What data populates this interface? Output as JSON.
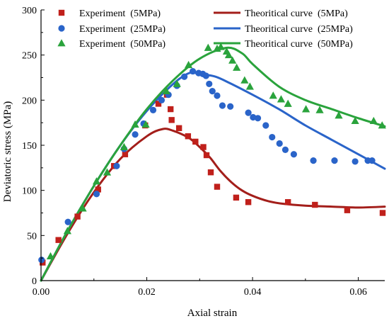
{
  "chart_data": {
    "type": "scatter",
    "xlabel": "Axial strain",
    "ylabel": "Deviatoric stress (MPa)",
    "xlim": [
      0.0,
      0.065
    ],
    "ylim": [
      0,
      300
    ],
    "x_ticks": [
      0.0,
      0.02,
      0.04,
      0.06
    ],
    "x_tick_labels": [
      "0.00",
      "0.02",
      "0.04",
      "0.06"
    ],
    "y_ticks": [
      0,
      50,
      100,
      150,
      200,
      250,
      300
    ],
    "y_tick_labels": [
      "0",
      "50",
      "100",
      "150",
      "200",
      "250",
      "300"
    ],
    "legend_position": "top",
    "experiments": [
      {
        "name": "Experiment (5MPa)",
        "marker": "square",
        "color": "#c0201b",
        "points": [
          [
            0.0003,
            20
          ],
          [
            0.0033,
            45
          ],
          [
            0.0069,
            71
          ],
          [
            0.0108,
            101
          ],
          [
            0.0138,
            127
          ],
          [
            0.0159,
            140
          ],
          [
            0.0197,
            172
          ],
          [
            0.0222,
            196
          ],
          [
            0.0238,
            206
          ],
          [
            0.0245,
            190
          ],
          [
            0.0247,
            178
          ],
          [
            0.0261,
            169
          ],
          [
            0.0278,
            160
          ],
          [
            0.0292,
            154
          ],
          [
            0.0307,
            148
          ],
          [
            0.0313,
            139
          ],
          [
            0.0321,
            120
          ],
          [
            0.0333,
            104
          ],
          [
            0.0369,
            92
          ],
          [
            0.0392,
            87
          ],
          [
            0.0467,
            87
          ],
          [
            0.0518,
            84
          ],
          [
            0.0579,
            78
          ],
          [
            0.0646,
            75
          ]
        ]
      },
      {
        "name": "Experiment (25MPa)",
        "marker": "circle",
        "color": "#2a64c9",
        "points": [
          [
            0.0001,
            23
          ],
          [
            0.0051,
            65
          ],
          [
            0.0105,
            96
          ],
          [
            0.0143,
            127
          ],
          [
            0.0157,
            146
          ],
          [
            0.0178,
            162
          ],
          [
            0.0194,
            174
          ],
          [
            0.0212,
            189
          ],
          [
            0.0228,
            200
          ],
          [
            0.0241,
            206
          ],
          [
            0.0257,
            216
          ],
          [
            0.0271,
            226
          ],
          [
            0.0287,
            232
          ],
          [
            0.0298,
            230
          ],
          [
            0.0306,
            229
          ],
          [
            0.0312,
            227
          ],
          [
            0.0318,
            218
          ],
          [
            0.0324,
            210
          ],
          [
            0.0333,
            205
          ],
          [
            0.0343,
            194
          ],
          [
            0.0358,
            193
          ],
          [
            0.0392,
            186
          ],
          [
            0.0401,
            181
          ],
          [
            0.041,
            180
          ],
          [
            0.0425,
            172
          ],
          [
            0.0437,
            159
          ],
          [
            0.0451,
            152
          ],
          [
            0.0462,
            145
          ],
          [
            0.0478,
            140
          ],
          [
            0.0515,
            133
          ],
          [
            0.0555,
            133
          ],
          [
            0.0594,
            132
          ],
          [
            0.0618,
            133
          ],
          [
            0.0626,
            133
          ]
        ]
      },
      {
        "name": "Experiment (50MPa)",
        "marker": "triangle",
        "color": "#2aa33c",
        "points": [
          [
            0.0018,
            27
          ],
          [
            0.005,
            55
          ],
          [
            0.0079,
            80
          ],
          [
            0.0105,
            110
          ],
          [
            0.0125,
            120
          ],
          [
            0.0157,
            148
          ],
          [
            0.0178,
            173
          ],
          [
            0.0198,
            173
          ],
          [
            0.0237,
            210
          ],
          [
            0.0257,
            218
          ],
          [
            0.0279,
            239
          ],
          [
            0.0316,
            258
          ],
          [
            0.0333,
            257
          ],
          [
            0.034,
            259
          ],
          [
            0.0351,
            254
          ],
          [
            0.0355,
            250
          ],
          [
            0.0362,
            244
          ],
          [
            0.037,
            236
          ],
          [
            0.0385,
            222
          ],
          [
            0.0395,
            215
          ],
          [
            0.0439,
            205
          ],
          [
            0.0454,
            201
          ],
          [
            0.0467,
            196
          ],
          [
            0.0501,
            190
          ],
          [
            0.0527,
            189
          ],
          [
            0.0563,
            183
          ],
          [
            0.0594,
            177
          ],
          [
            0.0629,
            177
          ],
          [
            0.0645,
            172
          ]
        ]
      }
    ],
    "curves": [
      {
        "name": "Theoritical curve (5MPa)",
        "color": "#a31e1a",
        "points": [
          [
            0.0,
            0
          ],
          [
            0.005,
            52
          ],
          [
            0.01,
            98
          ],
          [
            0.015,
            135
          ],
          [
            0.02,
            160
          ],
          [
            0.023,
            168
          ],
          [
            0.025,
            166
          ],
          [
            0.028,
            158
          ],
          [
            0.03,
            148
          ],
          [
            0.032,
            136
          ],
          [
            0.034,
            121
          ],
          [
            0.036,
            109
          ],
          [
            0.038,
            100
          ],
          [
            0.04,
            94
          ],
          [
            0.043,
            88
          ],
          [
            0.046,
            85
          ],
          [
            0.05,
            83
          ],
          [
            0.055,
            82
          ],
          [
            0.06,
            81
          ],
          [
            0.065,
            82
          ]
        ]
      },
      {
        "name": "Theoritical curve (25MPa)",
        "color": "#2a64c9",
        "points": [
          [
            0.0,
            0
          ],
          [
            0.005,
            55
          ],
          [
            0.01,
            105
          ],
          [
            0.015,
            150
          ],
          [
            0.02,
            188
          ],
          [
            0.025,
            218
          ],
          [
            0.028,
            230
          ],
          [
            0.03,
            229
          ],
          [
            0.033,
            226
          ],
          [
            0.036,
            218
          ],
          [
            0.04,
            206
          ],
          [
            0.045,
            190
          ],
          [
            0.05,
            172
          ],
          [
            0.055,
            156
          ],
          [
            0.06,
            140
          ],
          [
            0.065,
            124
          ]
        ]
      },
      {
        "name": "Theoritical curve (50MPa)",
        "color": "#2aa33c",
        "points": [
          [
            0.0,
            0
          ],
          [
            0.005,
            55
          ],
          [
            0.01,
            105
          ],
          [
            0.015,
            150
          ],
          [
            0.02,
            190
          ],
          [
            0.025,
            222
          ],
          [
            0.03,
            246
          ],
          [
            0.035,
            258
          ],
          [
            0.038,
            252
          ],
          [
            0.04,
            240
          ],
          [
            0.045,
            215
          ],
          [
            0.05,
            200
          ],
          [
            0.055,
            190
          ],
          [
            0.06,
            180
          ],
          [
            0.065,
            171
          ]
        ]
      }
    ],
    "legend": [
      {
        "label": "Experiment  (5MPa)",
        "kind": "marker",
        "series": 0
      },
      {
        "label": "Theoritical curve  (5MPa)",
        "kind": "line",
        "series": 0
      },
      {
        "label": "Experiment  (25MPa)",
        "kind": "marker",
        "series": 1
      },
      {
        "label": "Theoritical curve  (25MPa)",
        "kind": "line",
        "series": 1
      },
      {
        "label": "Experiment  (50MPa)",
        "kind": "marker",
        "series": 2
      },
      {
        "label": "Theoritical curve  (50MPa)",
        "kind": "line",
        "series": 2
      }
    ]
  }
}
